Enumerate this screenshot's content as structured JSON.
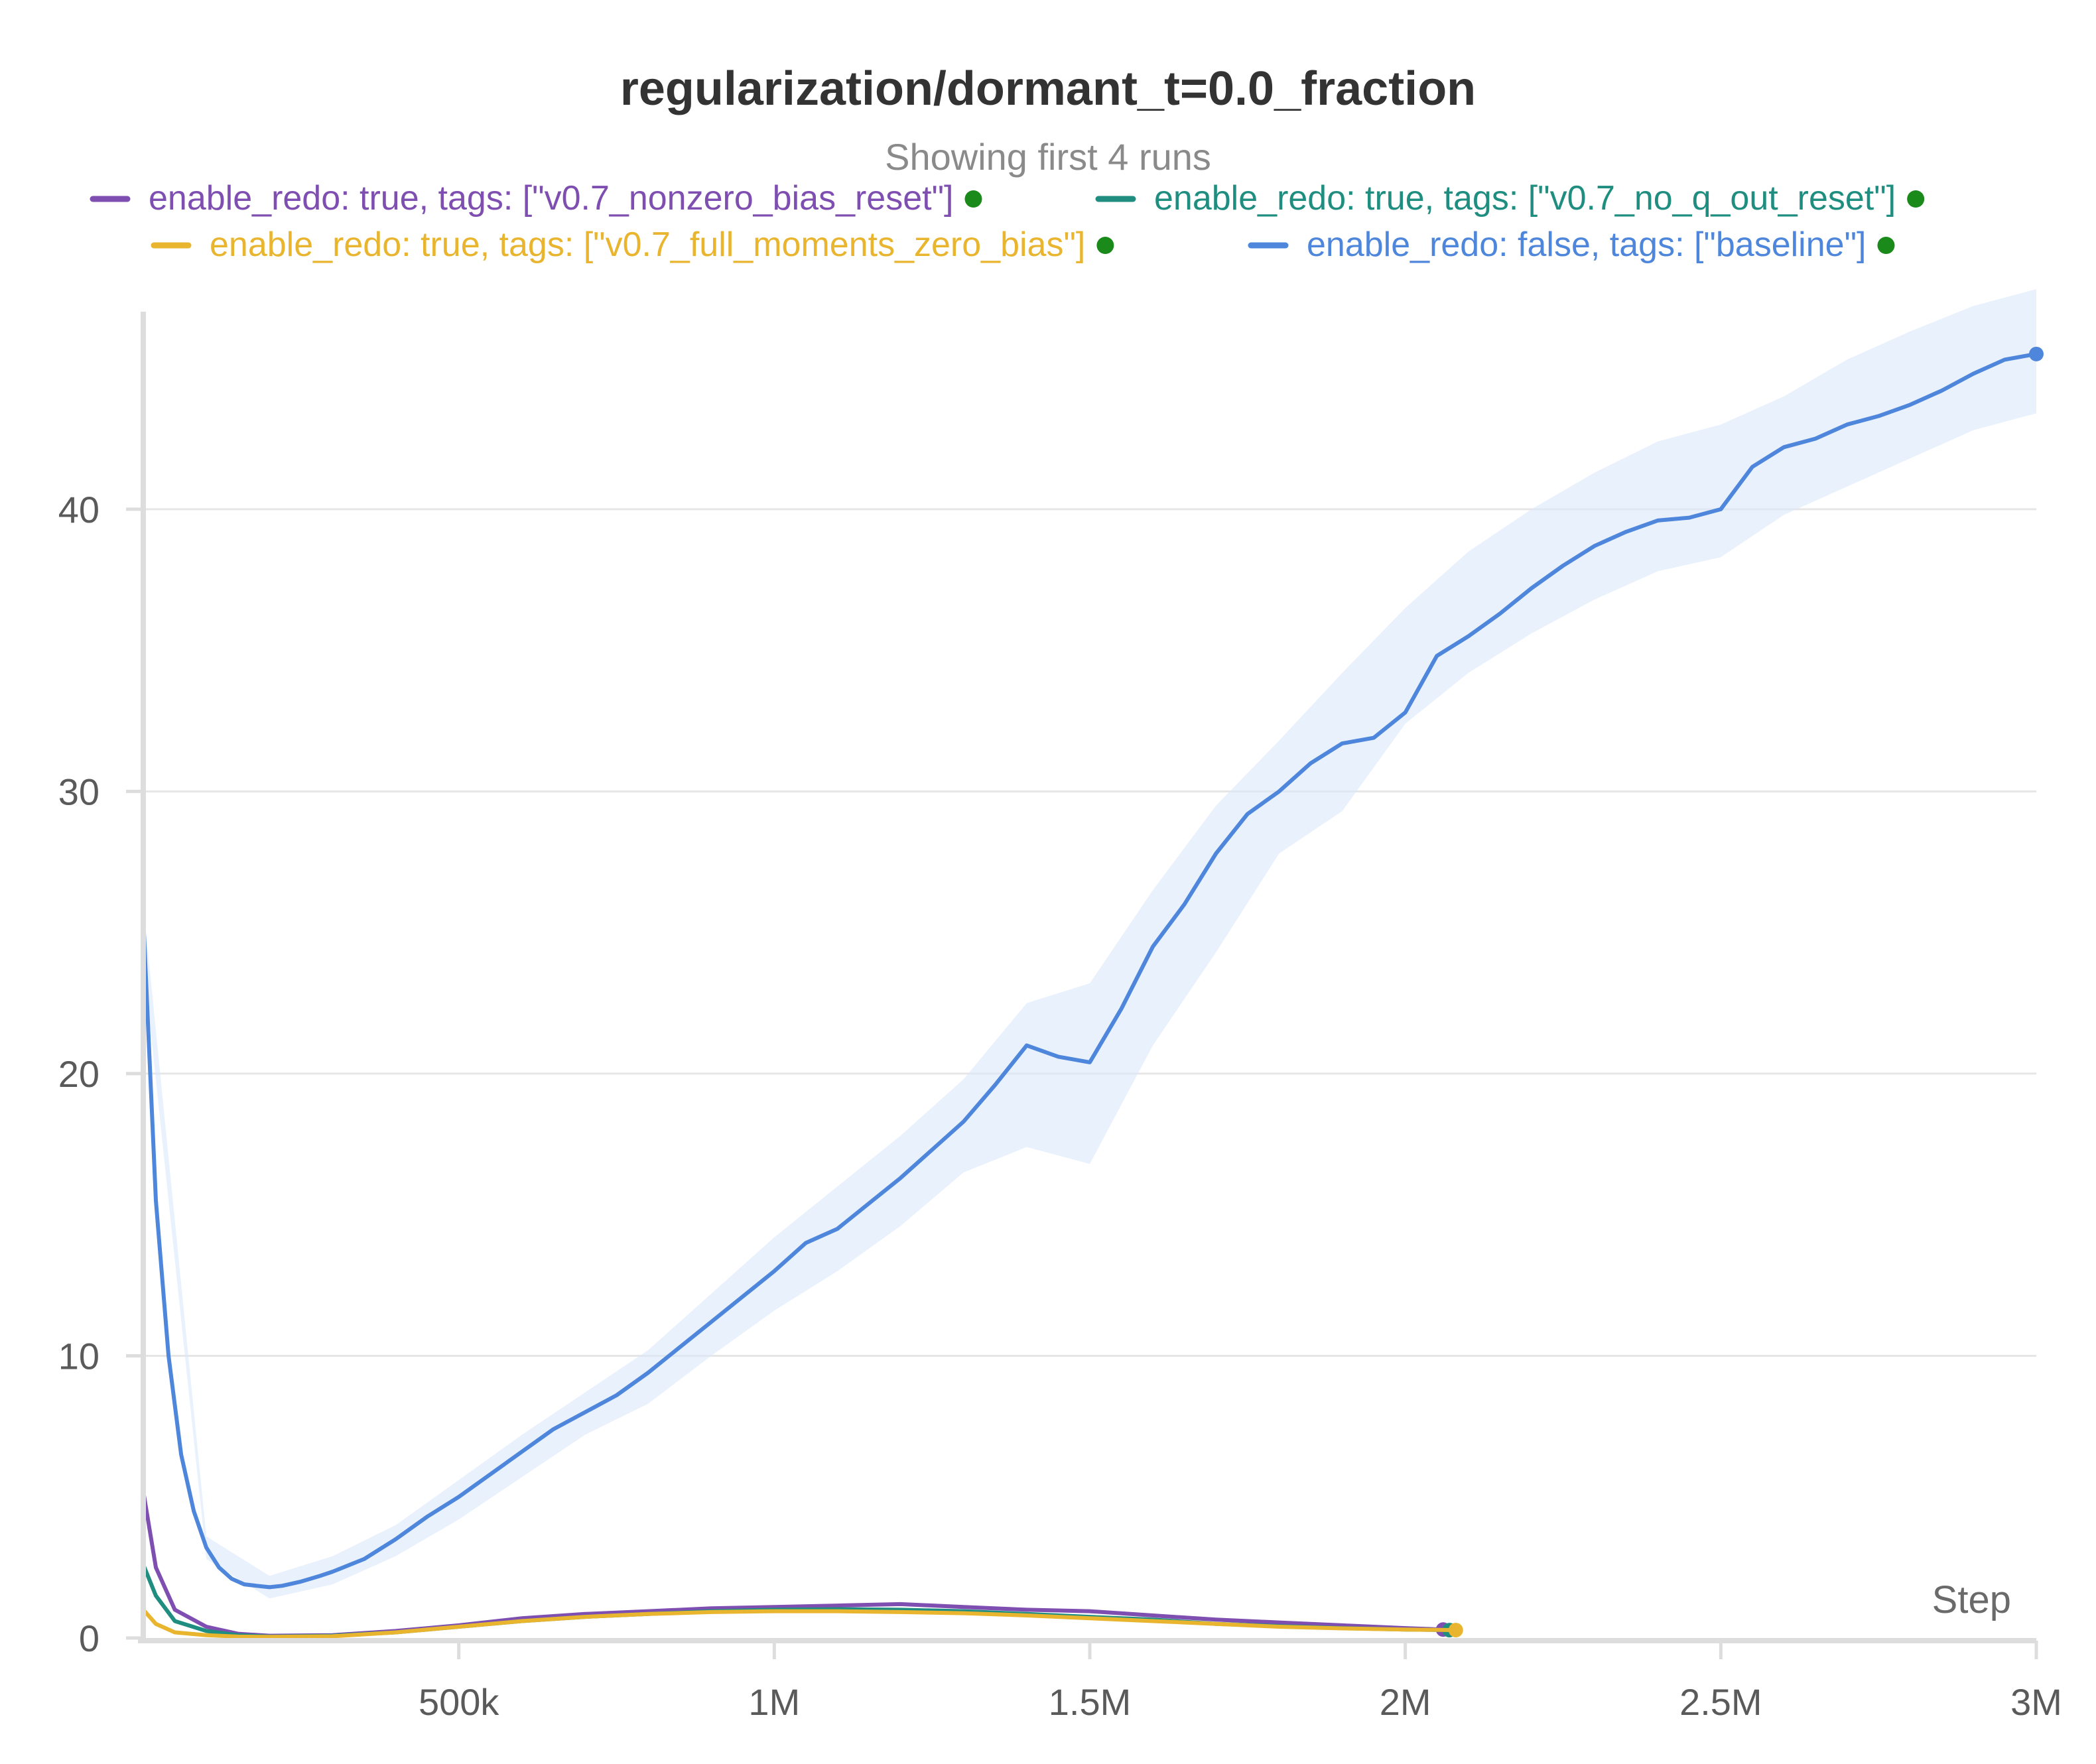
{
  "chart_data": {
    "type": "line",
    "title": "regularization/dormant_t=0.0_fraction",
    "subtitle": "Showing first 4 runs",
    "xlabel": "Step",
    "ylabel": "",
    "xlim": [
      0,
      3000000
    ],
    "ylim": [
      0,
      47
    ],
    "x_ticks": [
      500000,
      1000000,
      1500000,
      2000000,
      2500000,
      3000000
    ],
    "x_tick_labels": [
      "500k",
      "1M",
      "1.5M",
      "2M",
      "2.5M",
      "3M"
    ],
    "y_ticks": [
      0,
      10,
      20,
      30,
      40
    ],
    "y_tick_labels": [
      "0",
      "10",
      "20",
      "30",
      "40"
    ],
    "grid": true,
    "legend_position": "top",
    "series": [
      {
        "name": "enable_redo: true, tags: [\"v0.7_nonzero_bias_reset\"]",
        "color": "#7e4fb0",
        "x": [
          0,
          20000,
          50000,
          100000,
          150000,
          200000,
          300000,
          400000,
          500000,
          600000,
          700000,
          800000,
          900000,
          1000000,
          1100000,
          1200000,
          1300000,
          1400000,
          1500000,
          1600000,
          1700000,
          1800000,
          1900000,
          2000000,
          2060000
        ],
        "y": [
          5.2,
          2.5,
          1.0,
          0.4,
          0.15,
          0.08,
          0.1,
          0.25,
          0.45,
          0.7,
          0.85,
          0.95,
          1.05,
          1.1,
          1.15,
          1.2,
          1.1,
          1.0,
          0.95,
          0.8,
          0.65,
          0.55,
          0.45,
          0.35,
          0.3
        ]
      },
      {
        "name": "enable_redo: true, tags: [\"v0.7_no_q_out_reset\"]",
        "color": "#1f8e80",
        "x": [
          0,
          20000,
          50000,
          100000,
          150000,
          200000,
          300000,
          400000,
          500000,
          600000,
          700000,
          800000,
          900000,
          1000000,
          1100000,
          1200000,
          1300000,
          1400000,
          1500000,
          1600000,
          1700000,
          1800000,
          1900000,
          2000000,
          2070000
        ],
        "y": [
          2.6,
          1.5,
          0.6,
          0.25,
          0.1,
          0.05,
          0.08,
          0.2,
          0.4,
          0.6,
          0.75,
          0.85,
          0.95,
          1.0,
          1.02,
          1.0,
          0.95,
          0.85,
          0.75,
          0.65,
          0.5,
          0.42,
          0.35,
          0.3,
          0.28
        ]
      },
      {
        "name": "enable_redo: true, tags: [\"v0.7_full_moments_zero_bias\"]",
        "color": "#e9b52f",
        "x": [
          0,
          20000,
          50000,
          100000,
          150000,
          200000,
          300000,
          400000,
          500000,
          600000,
          700000,
          800000,
          900000,
          1000000,
          1100000,
          1200000,
          1300000,
          1400000,
          1500000,
          1600000,
          1700000,
          1800000,
          1900000,
          2000000,
          2080000
        ],
        "y": [
          1.0,
          0.5,
          0.2,
          0.1,
          0.05,
          0.04,
          0.06,
          0.2,
          0.4,
          0.6,
          0.75,
          0.85,
          0.92,
          0.95,
          0.95,
          0.92,
          0.88,
          0.8,
          0.7,
          0.6,
          0.5,
          0.4,
          0.34,
          0.3,
          0.28
        ]
      },
      {
        "name": "enable_redo: false, tags: [\"baseline\"]",
        "color": "#4e86dc",
        "x": [
          0,
          20000,
          40000,
          60000,
          80000,
          100000,
          120000,
          140000,
          160000,
          180000,
          200000,
          220000,
          250000,
          280000,
          300000,
          350000,
          400000,
          450000,
          500000,
          550000,
          600000,
          650000,
          700000,
          750000,
          800000,
          850000,
          900000,
          950000,
          1000000,
          1050000,
          1100000,
          1150000,
          1200000,
          1250000,
          1300000,
          1350000,
          1400000,
          1450000,
          1500000,
          1550000,
          1600000,
          1650000,
          1700000,
          1750000,
          1800000,
          1850000,
          1900000,
          1950000,
          2000000,
          2050000,
          2100000,
          2150000,
          2200000,
          2250000,
          2300000,
          2350000,
          2400000,
          2450000,
          2500000,
          2550000,
          2600000,
          2650000,
          2700000,
          2750000,
          2800000,
          2850000,
          2900000,
          2950000,
          3000000
        ],
        "y": [
          25.5,
          15.5,
          10.0,
          6.5,
          4.5,
          3.2,
          2.5,
          2.1,
          1.9,
          1.85,
          1.8,
          1.85,
          2.0,
          2.2,
          2.35,
          2.8,
          3.5,
          4.3,
          5.0,
          5.8,
          6.6,
          7.4,
          8.0,
          8.6,
          9.4,
          10.3,
          11.2,
          12.1,
          13.0,
          14.0,
          14.5,
          15.4,
          16.3,
          17.3,
          18.3,
          19.6,
          21.0,
          20.6,
          20.4,
          22.3,
          24.5,
          26.0,
          27.8,
          29.2,
          30.0,
          31.0,
          31.7,
          31.9,
          32.8,
          34.8,
          35.5,
          36.3,
          37.2,
          38.0,
          38.7,
          39.2,
          39.6,
          39.7,
          40.0,
          41.5,
          42.2,
          42.5,
          43.0,
          43.3,
          43.7,
          44.2,
          44.8,
          45.3,
          45.5
        ]
      }
    ],
    "baseline_band": {
      "x": [
        0,
        100000,
        200000,
        300000,
        400000,
        500000,
        600000,
        700000,
        800000,
        900000,
        1000000,
        1100000,
        1200000,
        1300000,
        1400000,
        1500000,
        1600000,
        1700000,
        1800000,
        1900000,
        2000000,
        2100000,
        2200000,
        2300000,
        2400000,
        2500000,
        2600000,
        2700000,
        2800000,
        2900000,
        3000000
      ],
      "upper": [
        26.0,
        3.6,
        2.2,
        2.9,
        4.0,
        5.6,
        7.2,
        8.7,
        10.2,
        12.2,
        14.2,
        16.0,
        17.8,
        19.8,
        22.5,
        23.2,
        26.5,
        29.5,
        31.8,
        34.2,
        36.5,
        38.5,
        40.0,
        41.3,
        42.4,
        43.0,
        44.0,
        45.3,
        46.3,
        47.2,
        47.8
      ],
      "lower": [
        24.0,
        2.8,
        1.4,
        1.9,
        2.9,
        4.2,
        5.7,
        7.2,
        8.3,
        10.0,
        11.6,
        13.0,
        14.6,
        16.5,
        17.4,
        16.8,
        21.0,
        24.3,
        27.8,
        29.3,
        32.4,
        34.2,
        35.6,
        36.8,
        37.8,
        38.3,
        39.8,
        40.8,
        41.8,
        42.8,
        43.4
      ]
    }
  },
  "legend": {
    "end_dot_color": "#1a8a1a"
  }
}
